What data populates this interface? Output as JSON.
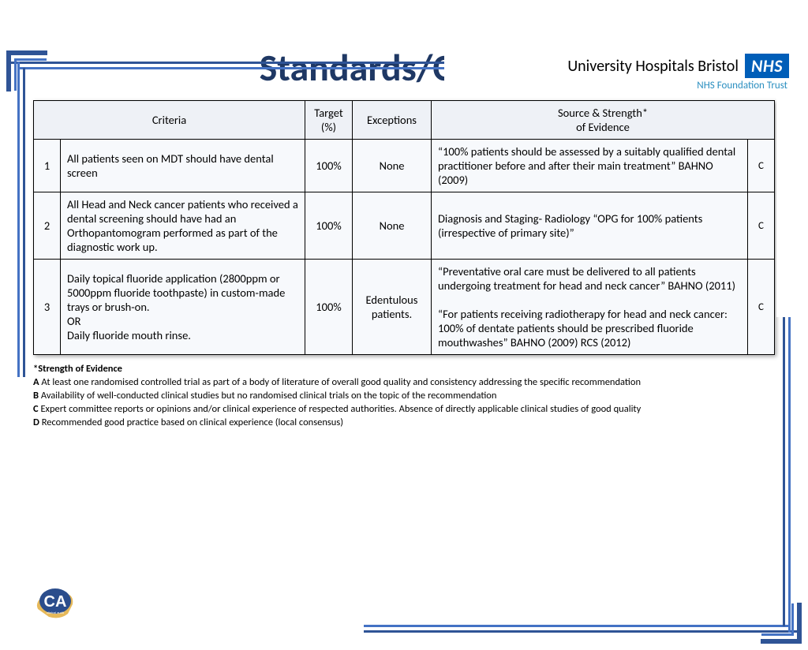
{
  "header": {
    "org_name": "University Hospitals Bristol",
    "badge": "NHS",
    "subline": "NHS Foundation Trust"
  },
  "title": "Standards/Criteria",
  "table": {
    "columns": {
      "criteria": "Criteria",
      "target": "Target (%)",
      "exceptions": "Exceptions",
      "source": "Source & Strength*\nof Evidence"
    },
    "rows": [
      {
        "n": "1",
        "criteria": "All patients seen on MDT should have dental screen",
        "target": "100%",
        "exceptions": "None",
        "source": "“100% patients should be assessed by a suitably qualified dental practitioner before and after their main treatment”  BAHNO (2009)",
        "grade": "C"
      },
      {
        "n": "2",
        "criteria": "All Head and Neck cancer patients who received a dental screening should have had an Orthopantomogram performed as part of the diagnostic work up.",
        "target": "100%",
        "exceptions": "None",
        "source": "Diagnosis and Staging- Radiology “OPG for 100% patients (irrespective of primary site)”",
        "grade": "C"
      },
      {
        "n": "3",
        "criteria": "Daily topical fluoride application (2800ppm or 5000ppm fluoride toothpaste) in custom-made trays or brush-on.\nOR\nDaily fluoride mouth rinse.",
        "target": "100%",
        "exceptions": "Edentulous patients.",
        "source": "“Preventative oral care must be delivered to all patients undergoing treatment for head and neck cancer” BAHNO (2011)\n\n“For patients receiving radiotherapy for head and neck cancer: 100% of dentate patients should be prescribed  fluoride mouthwashes” BAHNO (2009) RCS (2012)",
        "grade": "C"
      }
    ]
  },
  "footnotes": {
    "heading": "*Strength of Evidence",
    "items": [
      {
        "k": "A",
        "t": "At least one randomised controlled trial as part of a body of literature of overall good quality and consistency addressing the specific recommendation"
      },
      {
        "k": "B",
        "t": "Availability of well-conducted clinical studies but no randomised clinical trials on the topic of the recommendation"
      },
      {
        "k": "C",
        "t": "Expert committee reports or opinions and/or clinical experience of respected authorities. Absence of directly applicable clinical studies of good quality"
      },
      {
        "k": "D",
        "t": "Recommended good practice based on clinical experience (local consensus)"
      }
    ]
  },
  "colors": {
    "title": "#1f3864",
    "border_dark": "#2f5496",
    "border_light": "#4472c4",
    "nhs_blue": "#005eb8",
    "trust_blue": "#2b8fc0",
    "table_header_bg": "#eef1f6",
    "table_cell_bg": "#f7f9fc"
  }
}
